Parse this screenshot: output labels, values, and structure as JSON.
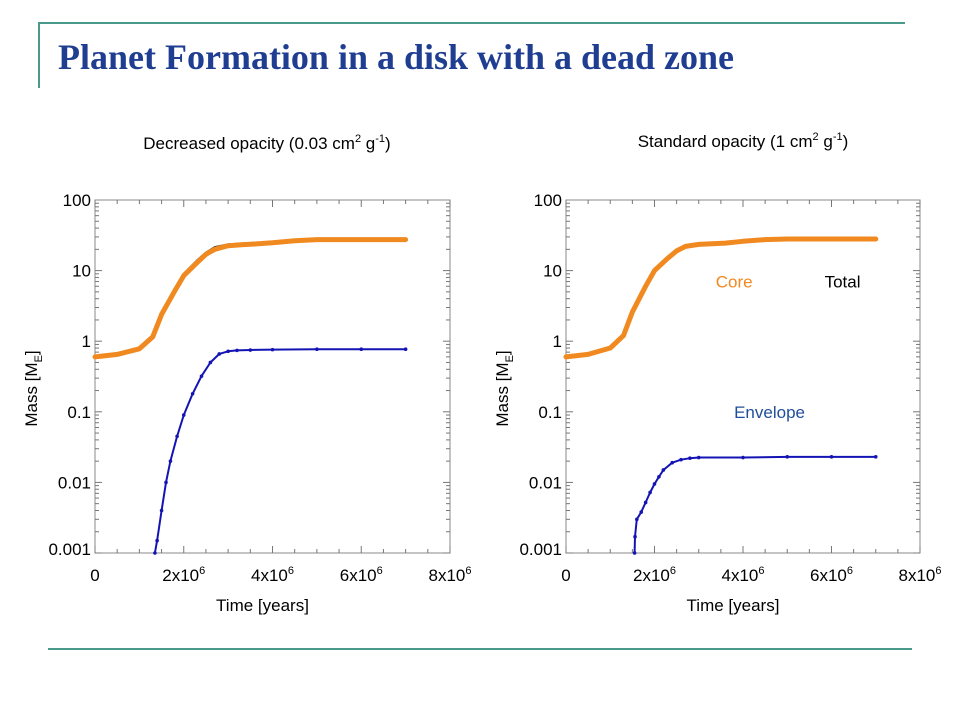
{
  "slide": {
    "title": "Planet Formation in a disk with a dead zone",
    "colors": {
      "title": "#1f3d91",
      "rules": "#4a9a8c"
    }
  },
  "chart_data": [
    {
      "type": "line",
      "title": "Decreased opacity (0.03 cm2 g-1)",
      "title_parts": {
        "prefix": "Decreased opacity (0.03 cm",
        "exp1": "2",
        "mid": " g",
        "exp2": "-1",
        "suffix": ")"
      },
      "xlabel": "Time [years]",
      "ylabel_parts": {
        "main": "Mass [M",
        "sub": "E",
        "close": "]"
      },
      "y_scale": "log",
      "xlim": [
        0,
        8000000
      ],
      "ylim": [
        0.001,
        100
      ],
      "x_ticks": [
        {
          "v": 0,
          "mant": "0",
          "exp": ""
        },
        {
          "v": 2000000,
          "mant": "2x10",
          "exp": "6"
        },
        {
          "v": 4000000,
          "mant": "4x10",
          "exp": "6"
        },
        {
          "v": 6000000,
          "mant": "6x10",
          "exp": "6"
        },
        {
          "v": 8000000,
          "mant": "8x10",
          "exp": "6"
        }
      ],
      "y_ticks": [
        {
          "v": 100,
          "label": "100"
        },
        {
          "v": 10,
          "label": "10"
        },
        {
          "v": 1,
          "label": "1"
        },
        {
          "v": 0.1,
          "label": "0.1"
        },
        {
          "v": 0.01,
          "label": "0.01"
        },
        {
          "v": 0.001,
          "label": "0.001"
        }
      ],
      "series": [
        {
          "key": "total",
          "color": "#222222",
          "x": [
            0,
            500000,
            1000000,
            1300000,
            1500000,
            1800000,
            2000000,
            2300000,
            2500000,
            2700000,
            3000000,
            3300000,
            3600000,
            4000000,
            4500000,
            5000000,
            6000000,
            7000000
          ],
          "y": [
            0.6,
            0.65,
            0.8,
            1.2,
            2.5,
            5.5,
            9,
            14,
            18,
            21.5,
            23.5,
            24.2,
            24.8,
            25.5,
            27.5,
            28,
            28,
            28
          ]
        },
        {
          "key": "core",
          "color": "#f08a20",
          "x": [
            0,
            500000,
            1000000,
            1300000,
            1500000,
            1800000,
            2000000,
            2300000,
            2500000,
            2700000,
            3000000,
            3300000,
            3600000,
            4000000,
            4500000,
            5000000,
            6000000,
            7000000
          ],
          "y": [
            0.6,
            0.65,
            0.78,
            1.15,
            2.4,
            5.2,
            8.5,
            13,
            17,
            20,
            22.5,
            23.3,
            23.8,
            24.8,
            26.5,
            27.5,
            27.5,
            27.5
          ]
        },
        {
          "key": "envelope",
          "color": "#1414b4",
          "x": [
            1350000,
            1400000,
            1500000,
            1600000,
            1700000,
            1850000,
            2000000,
            2200000,
            2400000,
            2600000,
            2800000,
            3000000,
            3200000,
            3500000,
            4000000,
            5000000,
            6000000,
            7000000
          ],
          "y": [
            0.001,
            0.0015,
            0.004,
            0.01,
            0.02,
            0.045,
            0.09,
            0.18,
            0.32,
            0.5,
            0.66,
            0.72,
            0.74,
            0.75,
            0.76,
            0.77,
            0.77,
            0.77
          ]
        }
      ],
      "labels": []
    },
    {
      "type": "line",
      "title": "Standard opacity (1 cm2 g-1)",
      "title_parts": {
        "prefix": "Standard opacity (1 cm",
        "exp1": "2",
        "mid": " g",
        "exp2": "-1",
        "suffix": ")"
      },
      "xlabel": "Time [years]",
      "ylabel_parts": {
        "main": "Mass [M",
        "sub": "E",
        "close": "]"
      },
      "y_scale": "log",
      "xlim": [
        0,
        8000000
      ],
      "ylim": [
        0.001,
        100
      ],
      "x_ticks": [
        {
          "v": 0,
          "mant": "0",
          "exp": ""
        },
        {
          "v": 2000000,
          "mant": "2x10",
          "exp": "6"
        },
        {
          "v": 4000000,
          "mant": "4x10",
          "exp": "6"
        },
        {
          "v": 6000000,
          "mant": "6x10",
          "exp": "6"
        },
        {
          "v": 8000000,
          "mant": "8x10",
          "exp": "6"
        }
      ],
      "y_ticks": [
        {
          "v": 100,
          "label": "100"
        },
        {
          "v": 10,
          "label": "10"
        },
        {
          "v": 1,
          "label": "1"
        },
        {
          "v": 0.1,
          "label": "0.1"
        },
        {
          "v": 0.01,
          "label": "0.01"
        },
        {
          "v": 0.001,
          "label": "0.001"
        }
      ],
      "series": [
        {
          "key": "total",
          "color": "#222222",
          "x": [
            0,
            500000,
            1000000,
            1300000,
            1500000,
            1800000,
            2000000,
            2300000,
            2500000,
            2700000,
            3000000,
            3300000,
            3600000,
            4000000,
            4500000,
            5000000,
            6000000,
            7000000
          ],
          "y": [
            0.6,
            0.65,
            0.8,
            1.2,
            2.6,
            6,
            10,
            15,
            19,
            22,
            23.5,
            24,
            24.5,
            26,
            27.5,
            28,
            28,
            28
          ]
        },
        {
          "key": "core",
          "color": "#f08a20",
          "x": [
            0,
            500000,
            1000000,
            1300000,
            1500000,
            1800000,
            2000000,
            2300000,
            2500000,
            2700000,
            3000000,
            3300000,
            3600000,
            4000000,
            4500000,
            5000000,
            6000000,
            7000000
          ],
          "y": [
            0.6,
            0.65,
            0.8,
            1.2,
            2.6,
            6,
            10,
            15,
            19,
            22,
            23.5,
            24,
            24.5,
            26,
            27.5,
            28,
            28,
            28
          ]
        },
        {
          "key": "envelope",
          "color": "#1414b4",
          "x": [
            1550000,
            1560000,
            1600000,
            1700000,
            1800000,
            1900000,
            2000000,
            2100000,
            2200000,
            2400000,
            2600000,
            2800000,
            3000000,
            4000000,
            5000000,
            6000000,
            7000000
          ],
          "y": [
            0.001,
            0.0017,
            0.003,
            0.0038,
            0.0052,
            0.0072,
            0.0095,
            0.012,
            0.015,
            0.019,
            0.021,
            0.022,
            0.0225,
            0.0225,
            0.023,
            0.023,
            0.023
          ]
        }
      ],
      "labels": [
        {
          "text": "Core",
          "color": "#f08a20",
          "x": 3800000,
          "y": 7
        },
        {
          "text": "Total",
          "color": "#000000",
          "x": 6250000,
          "y": 7
        },
        {
          "text": "Envelope",
          "color": "#1f4e9a",
          "x": 4600000,
          "y": 0.1
        }
      ]
    }
  ]
}
